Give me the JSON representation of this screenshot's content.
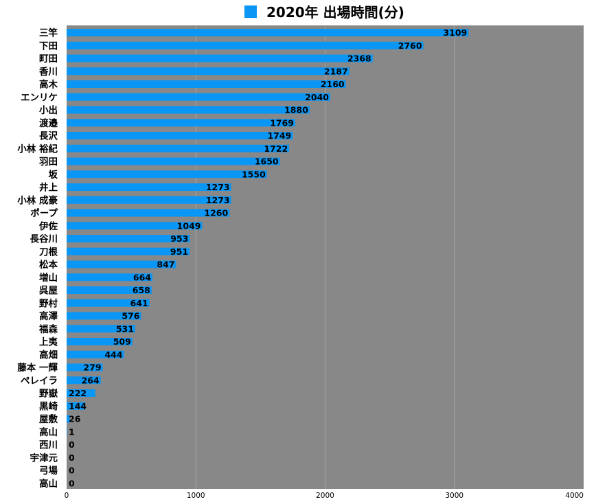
{
  "chart_data": {
    "type": "bar",
    "orientation": "horizontal",
    "title": "2020年 出場時間(分)",
    "legend": {
      "placement": "top-center",
      "entries": [
        {
          "name": "2020年 出場時間(分)",
          "color": "#0a96f5"
        }
      ]
    },
    "xlim": [
      0,
      4000
    ],
    "xticks": [
      0,
      1000,
      2000,
      3000,
      4000
    ],
    "grid": true,
    "colors": {
      "bar": "#0a96f5",
      "plot_background": "#888888",
      "grid": "#a6a6a6"
    },
    "categories": [
      "三竿",
      "下田",
      "町田",
      "香川",
      "高木",
      "エンリケ",
      "小出",
      "渡邉",
      "長沢",
      "小林 裕紀",
      "羽田",
      "坂",
      "井上",
      "小林 成豪",
      "ポープ",
      "伊佐",
      "長谷川",
      "刀根",
      "松本",
      "増山",
      "呉屋",
      "野村",
      "高澤",
      "福森",
      "上夷",
      "高畑",
      "藤本 一輝",
      "ペレイラ",
      "野嶽",
      "黒崎",
      "屋敷",
      "高山",
      "西川",
      "宇津元",
      "弓場",
      "高山"
    ],
    "values": [
      3109,
      2760,
      2368,
      2187,
      2160,
      2040,
      1880,
      1769,
      1749,
      1722,
      1650,
      1550,
      1273,
      1273,
      1260,
      1049,
      953,
      951,
      847,
      664,
      658,
      641,
      576,
      531,
      509,
      444,
      279,
      264,
      222,
      144,
      26,
      1,
      0,
      0,
      0,
      0
    ]
  }
}
